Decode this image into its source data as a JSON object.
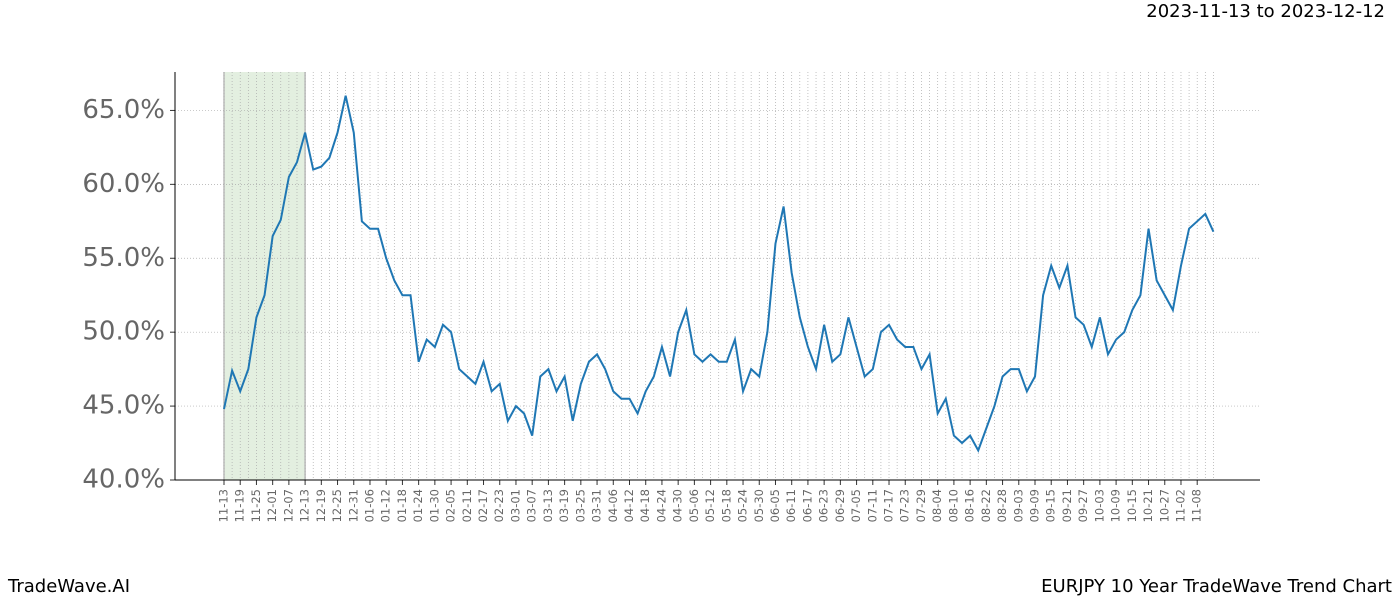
{
  "chart_data": {
    "type": "line",
    "subtitle": "2023-11-13 to 2023-12-12",
    "footer_left": "TradeWave.AI",
    "footer_right": "EURJPY 10 Year TradeWave Trend Chart",
    "categories": [
      "11-13",
      null,
      "11-19",
      null,
      "11-25",
      null,
      "12-01",
      null,
      "12-07",
      null,
      "12-13",
      null,
      "12-19",
      null,
      "12-25",
      null,
      "12-31",
      null,
      "01-06",
      null,
      "01-12",
      null,
      "01-18",
      null,
      "01-24",
      null,
      "01-30",
      null,
      "02-05",
      null,
      "02-11",
      null,
      "02-17",
      null,
      "02-23",
      null,
      "03-01",
      null,
      "03-07",
      null,
      "03-13",
      null,
      "03-19",
      null,
      "03-25",
      null,
      "03-31",
      null,
      "04-06",
      null,
      "04-12",
      null,
      "04-18",
      null,
      "04-24",
      null,
      "04-30",
      null,
      "05-06",
      null,
      "05-12",
      null,
      "05-18",
      null,
      "05-24",
      null,
      "05-30",
      null,
      "06-05",
      null,
      "06-11",
      null,
      "06-17",
      null,
      "06-23",
      null,
      "06-29",
      null,
      "07-05",
      null,
      "07-11",
      null,
      "07-17",
      null,
      "07-23",
      null,
      "07-29",
      null,
      "08-04",
      null,
      "08-10",
      null,
      "08-16",
      null,
      "08-22",
      null,
      "08-28",
      null,
      "09-03",
      null,
      "09-09",
      null,
      "09-15",
      null,
      "09-21",
      null,
      "09-27",
      null,
      "10-03",
      null,
      "10-09",
      null,
      "10-15",
      null,
      "10-21",
      null,
      "10-27",
      null,
      "11-02",
      null,
      "11-08",
      null,
      null
    ],
    "series": [
      {
        "color": "#1f77b4",
        "values": [
          44.8,
          47.4,
          46.0,
          47.5,
          51.0,
          52.5,
          56.5,
          57.6,
          60.5,
          61.5,
          63.5,
          61.0,
          61.2,
          61.8,
          63.5,
          66.0,
          63.5,
          57.5,
          57.0,
          57.0,
          55.0,
          53.5,
          52.5,
          52.5,
          48.0,
          49.5,
          49.0,
          50.5,
          50.0,
          47.5,
          47.0,
          46.5,
          48.0,
          46.0,
          46.5,
          44.0,
          45.0,
          44.5,
          43.0,
          47.0,
          47.5,
          46.0,
          47.0,
          44.0,
          46.5,
          48.0,
          48.5,
          47.5,
          46.0,
          45.5,
          45.5,
          44.5,
          46.0,
          47.0,
          49.0,
          47.0,
          50.0,
          51.5,
          48.5,
          48.0,
          48.5,
          48.0,
          48.0,
          49.5,
          46.0,
          47.5,
          47.0,
          50.0,
          56.0,
          58.5,
          54.0,
          51.0,
          49.0,
          47.5,
          50.5,
          48.0,
          48.5,
          51.0,
          49.0,
          47.0,
          47.5,
          50.0,
          50.5,
          49.5,
          49.0,
          49.0,
          47.5,
          48.5,
          44.5,
          45.5,
          43.0,
          42.5,
          43.0,
          42.0,
          43.5,
          45.0,
          47.0,
          47.5,
          47.5,
          46.0,
          47.0,
          52.5,
          54.5,
          53.0,
          54.5,
          51.0,
          50.5,
          49.0,
          51.0,
          48.5,
          49.5,
          50.0,
          51.5,
          52.5,
          57.0,
          53.5,
          52.5,
          51.5,
          54.5,
          57.0,
          57.5,
          58.0,
          56.8
        ]
      }
    ],
    "shade": {
      "start": "11-13",
      "end": "12-13",
      "color": "#e3efe0"
    },
    "ylim": [
      40,
      67.6
    ],
    "yticks": [
      {
        "value": 40,
        "label": "40.0%"
      },
      {
        "value": 45,
        "label": "45.0%"
      },
      {
        "value": 50,
        "label": "50.0%"
      },
      {
        "value": 55,
        "label": "55.0%"
      },
      {
        "value": 60,
        "label": "60.0%"
      },
      {
        "value": 65,
        "label": "65.0%"
      }
    ],
    "grid": true
  }
}
